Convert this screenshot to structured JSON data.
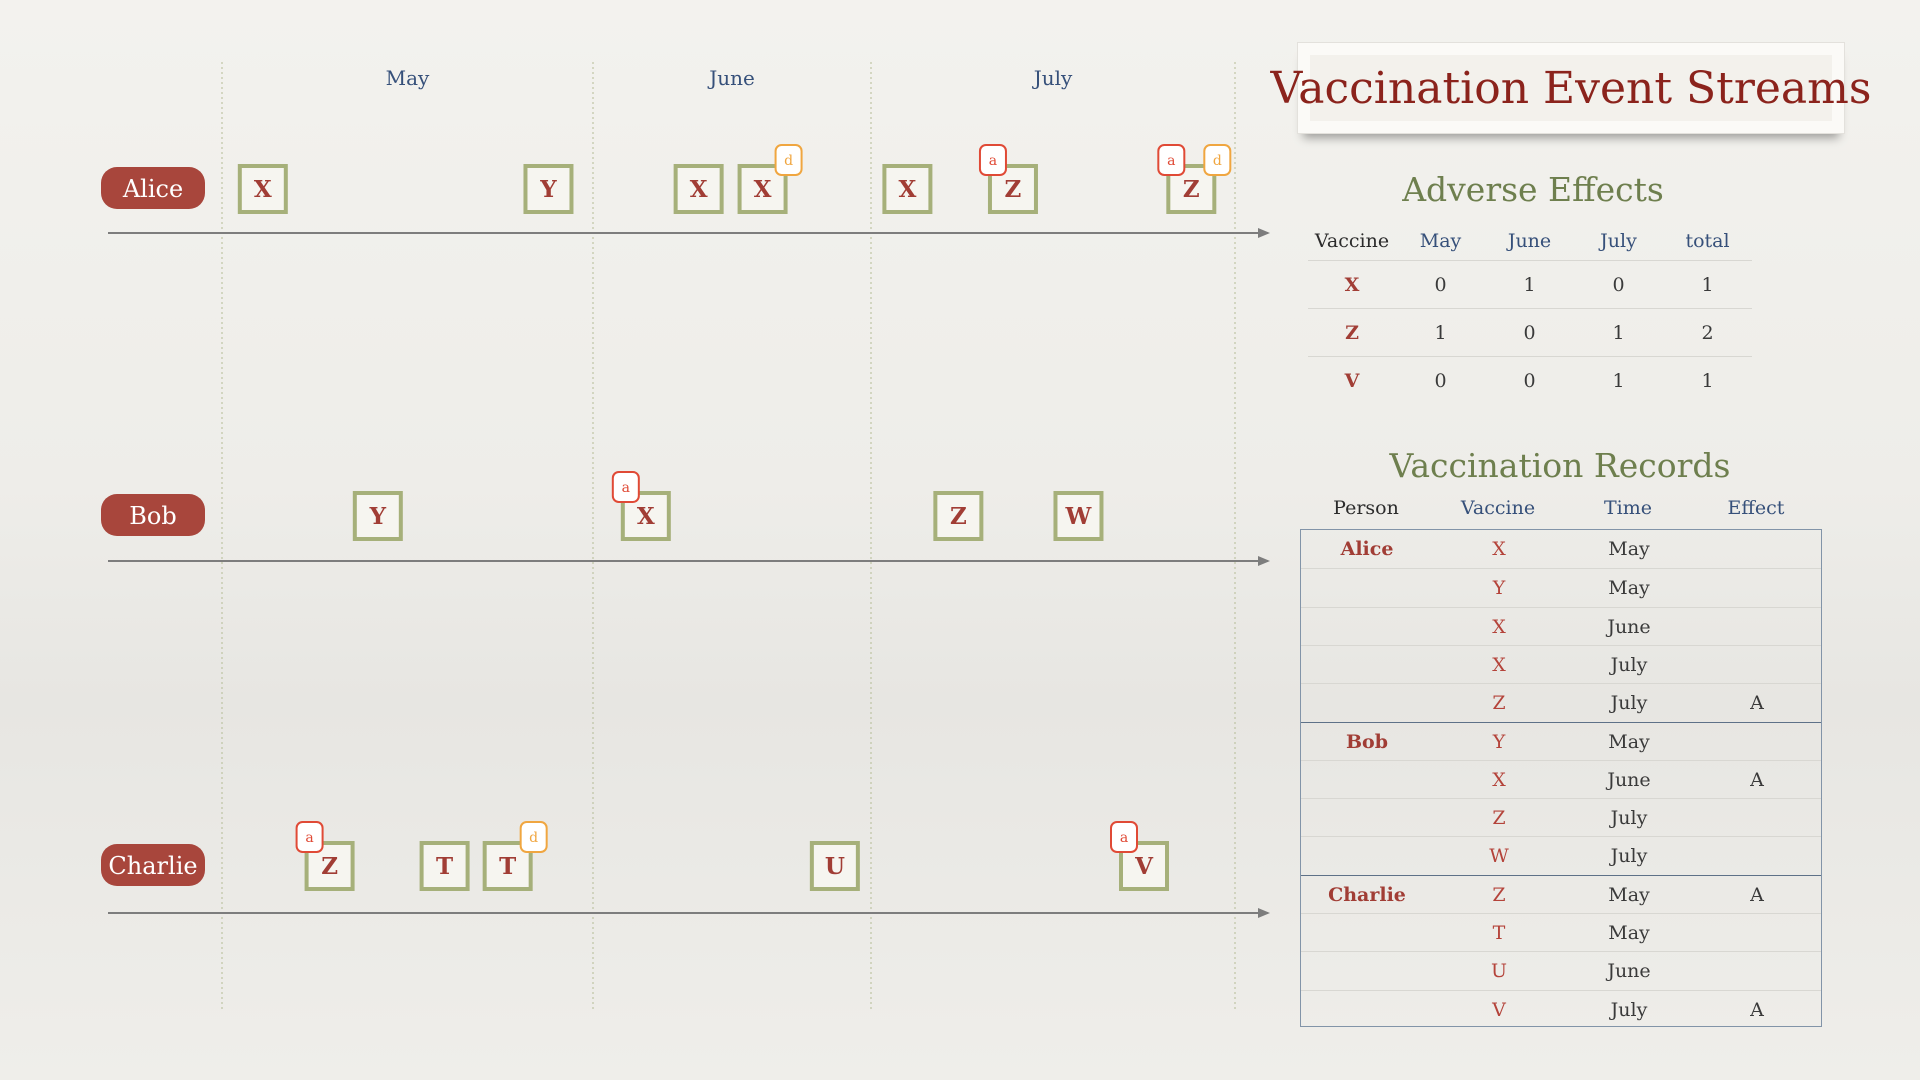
{
  "months": [
    "May",
    "June",
    "July"
  ],
  "persons": [
    {
      "name": "Alice",
      "events": [
        {
          "vaccine": "X",
          "month": "May",
          "pos": 0.11,
          "tags": []
        },
        {
          "vaccine": "Y",
          "month": "May",
          "pos": 0.88,
          "tags": []
        },
        {
          "vaccine": "X",
          "month": "June",
          "pos": 0.38,
          "tags": []
        },
        {
          "vaccine": "X",
          "month": "June",
          "pos": 0.61,
          "tags": [
            "d"
          ]
        },
        {
          "vaccine": "X",
          "month": "July",
          "pos": 0.1,
          "tags": []
        },
        {
          "vaccine": "Z",
          "month": "July",
          "pos": 0.39,
          "tags": [
            "a"
          ]
        },
        {
          "vaccine": "Z",
          "month": "July",
          "pos": 0.88,
          "tags": [
            "a",
            "d"
          ]
        }
      ]
    },
    {
      "name": "Bob",
      "events": [
        {
          "vaccine": "Y",
          "month": "May",
          "pos": 0.42,
          "tags": []
        },
        {
          "vaccine": "X",
          "month": "June",
          "pos": 0.19,
          "tags": [
            "a"
          ]
        },
        {
          "vaccine": "Z",
          "month": "July",
          "pos": 0.24,
          "tags": []
        },
        {
          "vaccine": "W",
          "month": "July",
          "pos": 0.57,
          "tags": []
        }
      ]
    },
    {
      "name": "Charlie",
      "events": [
        {
          "vaccine": "Z",
          "month": "May",
          "pos": 0.29,
          "tags": [
            "a"
          ]
        },
        {
          "vaccine": "T",
          "month": "May",
          "pos": 0.6,
          "tags": []
        },
        {
          "vaccine": "T",
          "month": "May",
          "pos": 0.77,
          "tags": [
            "d"
          ]
        },
        {
          "vaccine": "U",
          "month": "June",
          "pos": 0.87,
          "tags": []
        },
        {
          "vaccine": "V",
          "month": "July",
          "pos": 0.75,
          "tags": [
            "a"
          ]
        }
      ]
    }
  ],
  "title": "Vaccination Event Streams",
  "adverse_effects": {
    "title": "Adverse Effects",
    "headers": [
      "Vaccine",
      "May",
      "June",
      "July",
      "total"
    ],
    "rows": [
      [
        "X",
        "0",
        "1",
        "0",
        "1"
      ],
      [
        "Z",
        "1",
        "0",
        "1",
        "2"
      ],
      [
        "V",
        "0",
        "0",
        "1",
        "1"
      ]
    ]
  },
  "vaccination_records": {
    "title": "Vaccination Records",
    "headers": [
      "Person",
      "Vaccine",
      "Time",
      "Effect"
    ],
    "rows": [
      [
        "Alice",
        "X",
        "May",
        ""
      ],
      [
        "",
        "Y",
        "May",
        ""
      ],
      [
        "",
        "X",
        "June",
        ""
      ],
      [
        "",
        "X",
        "July",
        ""
      ],
      [
        "",
        "Z",
        "July",
        "A"
      ],
      [
        "Bob",
        "Y",
        "May",
        ""
      ],
      [
        "",
        "X",
        "June",
        "A"
      ],
      [
        "",
        "Z",
        "July",
        ""
      ],
      [
        "",
        "W",
        "July",
        ""
      ],
      [
        "Charlie",
        "Z",
        "May",
        "A"
      ],
      [
        "",
        "T",
        "May",
        ""
      ],
      [
        "",
        "U",
        "June",
        ""
      ],
      [
        "",
        "V",
        "July",
        "A"
      ]
    ]
  },
  "colors": {
    "person_pill": "#a8463c",
    "vaccine_text": "#a13d35",
    "box_border": "#a6b07a",
    "tag_adverse": "#e04a36",
    "tag_d": "#f0a640",
    "header_blue": "#36507a",
    "section_green": "#6e7f4e",
    "title_red": "#8b231c"
  }
}
